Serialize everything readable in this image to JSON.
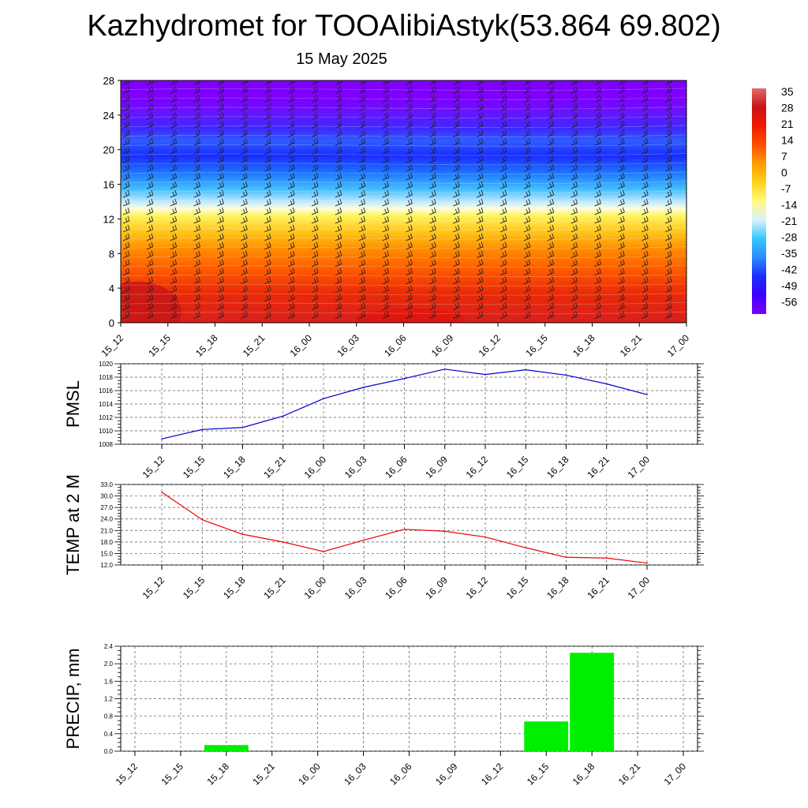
{
  "title": "Kazhydromet for TOOAlibiAstyk(53.864 69.802)",
  "subtitle": "15 May 2025",
  "time_labels": [
    "15_12",
    "15_15",
    "15_18",
    "15_21",
    "16_00",
    "16_03",
    "16_06",
    "16_09",
    "16_12",
    "16_15",
    "16_18",
    "16_21",
    "17_00"
  ],
  "chart_data": [
    {
      "type": "heatmap",
      "y_ticks": [
        "0",
        "4",
        "8",
        "12",
        "16",
        "20",
        "24",
        "28"
      ],
      "ylim": [
        0,
        28
      ],
      "x": [
        "15_12",
        "15_15",
        "15_18",
        "15_21",
        "16_00",
        "16_03",
        "16_06",
        "16_09",
        "16_12",
        "16_15",
        "16_18",
        "16_21",
        "17_00"
      ],
      "colorbar": {
        "labels": [
          "35",
          "28",
          "21",
          "14",
          "7",
          "0",
          "-7",
          "-14",
          "-21",
          "-28",
          "-35",
          "-42",
          "-49",
          "-56"
        ],
        "range": [
          -60,
          38
        ]
      },
      "colors": [
        "#7f00ff",
        "#3d00ff",
        "#1a2cff",
        "#2a8bff",
        "#36c6ff",
        "#d8f2ff",
        "#fffb7f",
        "#ffd21a",
        "#ff9a00",
        "#ff5000",
        "#ef1a00",
        "#c81414",
        "#e46a6a"
      ]
    },
    {
      "type": "line",
      "ylabel": "PMSL",
      "x": [
        "15_12",
        "15_15",
        "15_18",
        "15_21",
        "16_00",
        "16_03",
        "16_06",
        "16_09",
        "16_12",
        "16_15",
        "16_18",
        "16_21",
        "17_00"
      ],
      "series": [
        {
          "values": [
            1008.8,
            1010.2,
            1010.5,
            1012.2,
            1014.8,
            1016.5,
            1017.8,
            1019.2,
            1018.4,
            1019.1,
            1018.3,
            1017.0,
            1015.4
          ]
        }
      ],
      "ylim": [
        1008,
        1020
      ],
      "y_ticks": [
        "1008",
        "1010",
        "1012",
        "1014",
        "1016",
        "1018",
        "1020"
      ],
      "color": "#0000cc",
      "grid": true
    },
    {
      "type": "line",
      "ylabel": "TEMP at 2 M",
      "x": [
        "15_12",
        "15_15",
        "15_18",
        "15_21",
        "16_00",
        "16_03",
        "16_06",
        "16_09",
        "16_12",
        "16_15",
        "16_18",
        "16_21",
        "17_00"
      ],
      "series": [
        {
          "values": [
            31.0,
            23.8,
            20.0,
            18.0,
            15.5,
            18.5,
            21.3,
            20.8,
            19.3,
            16.5,
            14.0,
            13.8,
            12.5
          ]
        }
      ],
      "ylim": [
        12.0,
        33.0
      ],
      "y_ticks": [
        "12.0",
        "15.0",
        "18.0",
        "21.0",
        "24.0",
        "27.0",
        "30.0",
        "33.0"
      ],
      "color": "#ee0000",
      "grid": true
    },
    {
      "type": "bar",
      "ylabel": "PRECIP, mm",
      "categories": [
        "15_12",
        "15_15",
        "15_18",
        "15_21",
        "16_00",
        "16_03",
        "16_06",
        "16_09",
        "16_12",
        "16_15",
        "16_18",
        "16_21",
        "17_00"
      ],
      "values": [
        0,
        0,
        0.14,
        0,
        0,
        0,
        0,
        0,
        0,
        0.68,
        2.25,
        0,
        0
      ],
      "ylim": [
        0.0,
        2.4
      ],
      "y_ticks": [
        "0.0",
        "0.4",
        "0.8",
        "1.2",
        "1.6",
        "2.0",
        "2.4"
      ],
      "color": "#00ee00",
      "grid": true
    }
  ]
}
